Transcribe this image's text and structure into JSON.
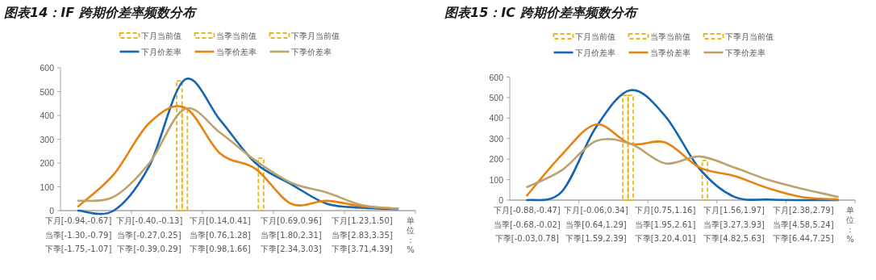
{
  "chart_data": [
    {
      "type": "line",
      "title": "图表14：IF 跨期价差率频数分布",
      "xlabel": "单位：%",
      "categories": [
        "下月[-0.94,-0.67]\n当季[-1.30,-0.79]\n下季[-1.75,-1.07]",
        null,
        "下月[-0.40,-0.13]\n当季[-0.27,0.25]\n下季[-0.39,0.29]",
        null,
        "下月[0.14,0.41]\n当季[0.76,1.28]\n下季[0.98,1.66]",
        null,
        "下月[0.69,0.96]\n当季[1.80,2.31]\n下季[2.34,3.03]",
        null,
        "下月[1.23,1.50]\n当季[2.83,3.35]\n下季[3.71,4.39]",
        null
      ],
      "series": [
        {
          "name": "下月当前值",
          "type": "bar",
          "line_style": "dashed",
          "color": "#e8b422",
          "values": [
            null,
            null,
            null,
            545,
            null,
            null,
            null,
            null,
            null,
            null
          ]
        },
        {
          "name": "当季当前值",
          "type": "bar",
          "line_style": "dashed",
          "color": "#e8b422",
          "values": [
            null,
            null,
            null,
            430,
            null,
            null,
            null,
            null,
            null,
            null
          ]
        },
        {
          "name": "下季月当前值",
          "type": "bar",
          "line_style": "dashed",
          "color": "#e8b422",
          "values": [
            null,
            null,
            null,
            null,
            null,
            220,
            null,
            null,
            null,
            null
          ]
        },
        {
          "name": "下月价差率",
          "color": "#1665b0",
          "values": [
            0,
            0,
            187,
            550,
            380,
            199,
            111,
            29,
            12,
            6
          ]
        },
        {
          "name": "当季价差率",
          "color": "#e8830f",
          "values": [
            18,
            152,
            368,
            433,
            240,
            175,
            29,
            41,
            18,
            9
          ]
        },
        {
          "name": "下季价差率",
          "color": "#bea16b",
          "values": [
            41,
            58,
            199,
            427,
            327,
            210,
            117,
            76,
            23,
            8
          ]
        }
      ],
      "ylim": [
        0,
        600
      ],
      "yticks": [
        0,
        100,
        200,
        300,
        400,
        500,
        600
      ],
      "legend": "top",
      "marker": "none"
    },
    {
      "type": "line",
      "title": "图表15：IC 跨期价差率频数分布",
      "xlabel": "单位：%",
      "categories": [
        "下月[-0.88,-0.47]\n当季[-0.68,-0.02]\n下季[-0.03,0.78]",
        null,
        "下月[-0.06,0.34]\n当季[0.64,1.29]\n下季[1.59,2.39]",
        null,
        "下月[0.75,1.16]\n当季[1.95,2.61]\n下季[3.20,4.01]",
        null,
        "下月[1.56,1.97]\n当季[3.27,3.93]\n下季[4.82,5.63]",
        null,
        "下月[2.38,2.79]\n当季[4.58,5.24]\n下季[6.44,7.25]",
        null
      ],
      "series": [
        {
          "name": "下月当前值",
          "type": "bar",
          "line_style": "dashed",
          "color": "#e8b422",
          "values": [
            null,
            null,
            null,
            511,
            null,
            null,
            null,
            null,
            null,
            null
          ]
        },
        {
          "name": "当季当前值",
          "type": "bar",
          "line_style": "dashed",
          "color": "#e8b422",
          "values": [
            null,
            null,
            null,
            511,
            null,
            null,
            null,
            null,
            null,
            null
          ]
        },
        {
          "name": "下季月当前值",
          "type": "bar",
          "line_style": "dashed",
          "color": "#e8b422",
          "values": [
            null,
            null,
            null,
            null,
            null,
            193,
            null,
            null,
            null,
            null
          ]
        },
        {
          "name": "下月价差率",
          "color": "#1665b0",
          "values": [
            0,
            40,
            356,
            536,
            410,
            152,
            16,
            3,
            0,
            0
          ]
        },
        {
          "name": "当季价差率",
          "color": "#e8830f",
          "values": [
            23,
            220,
            369,
            274,
            281,
            159,
            118,
            57,
            14,
            3
          ]
        },
        {
          "name": "下季价差率",
          "color": "#bea16b",
          "values": [
            64,
            145,
            288,
            274,
            179,
            213,
            159,
            98,
            54,
            16
          ]
        }
      ],
      "ylim": [
        0,
        600
      ],
      "yticks": [
        0,
        100,
        200,
        300,
        400,
        500,
        600
      ],
      "legend": "top",
      "marker": "none"
    }
  ]
}
